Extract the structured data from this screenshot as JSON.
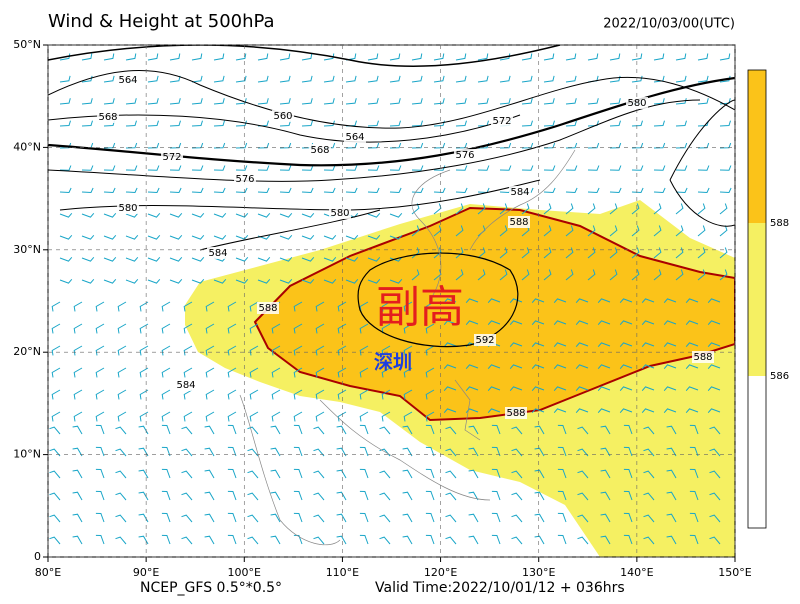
{
  "header": {
    "title": "Wind & Height at 500hPa",
    "time": "2022/10/03/00(UTC)"
  },
  "map": {
    "lon_range": [
      80,
      150
    ],
    "lat_range": [
      0,
      50
    ],
    "lon_ticks": [
      {
        "value": 80,
        "label": "80°E"
      },
      {
        "value": 90,
        "label": "90°E"
      },
      {
        "value": 100,
        "label": "100°E"
      },
      {
        "value": 110,
        "label": "110°E"
      },
      {
        "value": 120,
        "label": "120°E"
      },
      {
        "value": 130,
        "label": "130°E"
      },
      {
        "value": 140,
        "label": "140°E"
      },
      {
        "value": 150,
        "label": "150°E"
      }
    ],
    "lat_ticks": [
      {
        "value": 0,
        "label": "0"
      },
      {
        "value": 10,
        "label": "10°N"
      },
      {
        "value": 20,
        "label": "20°N"
      },
      {
        "value": 30,
        "label": "30°N"
      },
      {
        "value": 40,
        "label": "40°N"
      },
      {
        "value": 50,
        "label": "50°N"
      }
    ],
    "contour_labels": [
      564,
      568,
      560,
      564,
      568,
      572,
      576,
      572,
      576,
      580,
      580,
      580,
      584,
      584,
      588,
      588,
      592,
      588,
      588,
      584
    ],
    "annotations": {
      "subtropical_high": "副高",
      "city": "深圳"
    }
  },
  "colorbar": {
    "levels": [
      588,
      586
    ]
  },
  "footer": {
    "model": "NCEP_GFS 0.5°*0.5°",
    "valid_time": "Valid Time:2022/10/01/12 + 036hrs"
  }
}
